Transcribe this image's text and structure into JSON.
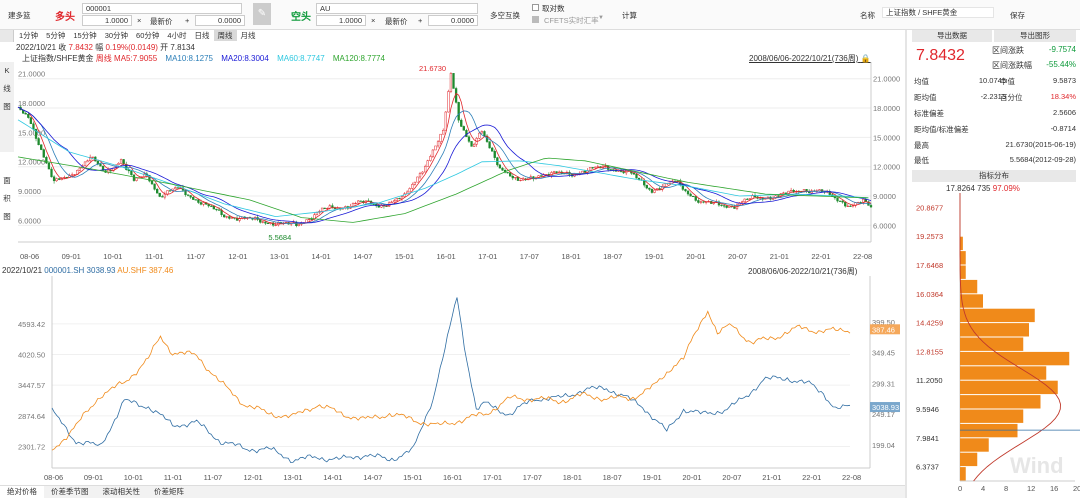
{
  "toolbar": {
    "strategy": "建多篮",
    "long_label": "多头",
    "long_code": "000001",
    "long_qty_label": "1.0000",
    "long_op": "×",
    "long_price_label": "最新价",
    "long_plus": "+",
    "long_offset": "0.0000",
    "short_label": "空头",
    "short_code": "AU",
    "short_qty": "1.0000",
    "short_op": "×",
    "short_price_label": "最新价",
    "short_plus": "+",
    "short_offset": "0.0000",
    "ls_exchange": "多空互换",
    "inverse": "取对数",
    "cfets": "CFETS实时汇率",
    "calc": "计算",
    "name_label": "名称",
    "name_value": "上证指数 / SHFE黄金",
    "save": "保存"
  },
  "periods": [
    "1分钟",
    "5分钟",
    "15分钟",
    "30分钟",
    "60分钟",
    "4小时",
    "日线",
    "周线",
    "月线"
  ],
  "active_period": "周线",
  "side_labels": {
    "k": "K",
    "line": "线",
    "chart": "图",
    "area": "面",
    "product": "积",
    "chart2": "图"
  },
  "info": {
    "date": "2022/10/21",
    "close_label": "收",
    "close": "7.8432",
    "chg_label": "幅",
    "chg": "0.19%(0.0149)",
    "open_label": "开",
    "open": "7.8134"
  },
  "ma": {
    "title": "上证指数/SHFE黄金",
    "period": "周线",
    "ma5": "MA5:7.9055",
    "ma10": "MA10:8.1275",
    "ma20": "MA20:8.3004",
    "ma60": "MA60:8.7747",
    "ma120": "MA120:8.7774",
    "range": "2008/06/06-2022/10/21(736周)",
    "lock": "🔒"
  },
  "ma_colors": {
    "ma5": "#e0272c",
    "ma10": "#2c7fb8",
    "ma20": "#1a1ad6",
    "ma60": "#2ec8e0",
    "ma120": "#2fa52f"
  },
  "k_chart": {
    "y_ticks": [
      "21.0000",
      "18.0000",
      "15.0000",
      "12.0000",
      "9.0000",
      "6.0000"
    ],
    "y_values": [
      21,
      18,
      15,
      12,
      9,
      6
    ],
    "y_min": 4.3,
    "y_max": 22.3,
    "high_label": "21.6730",
    "low_label": "5.5684",
    "x_ticks": [
      "08-06",
      "09-01",
      "10-01",
      "11-01",
      "11-07",
      "12-01",
      "13-01",
      "14-01",
      "14-07",
      "15-01",
      "16-01",
      "17-01",
      "17-07",
      "18-01",
      "18-07",
      "19-01",
      "20-01",
      "20-07",
      "21-01",
      "22-01",
      "22-08"
    ],
    "series": [
      [
        0,
        17.8
      ],
      [
        4,
        17.0
      ],
      [
        8,
        14.5
      ],
      [
        14,
        10.4
      ],
      [
        20,
        11.0
      ],
      [
        28,
        13.0
      ],
      [
        34,
        11.3
      ],
      [
        40,
        12.8
      ],
      [
        45,
        10.5
      ],
      [
        50,
        11.2
      ],
      [
        55,
        9.0
      ],
      [
        62,
        9.8
      ],
      [
        72,
        8.2
      ],
      [
        80,
        7.0
      ],
      [
        95,
        6.4
      ],
      [
        108,
        6.0
      ],
      [
        118,
        7.6
      ],
      [
        125,
        7.8
      ],
      [
        132,
        8.4
      ],
      [
        140,
        8.0
      ],
      [
        150,
        8.9
      ],
      [
        158,
        12.2
      ],
      [
        165,
        15.5
      ],
      [
        168,
        21.6
      ],
      [
        171,
        17.0
      ],
      [
        176,
        14.0
      ],
      [
        180,
        15.5
      ],
      [
        187,
        12.0
      ],
      [
        194,
        10.4
      ],
      [
        202,
        11.2
      ],
      [
        215,
        11.3
      ],
      [
        228,
        12.0
      ],
      [
        237,
        11.4
      ],
      [
        246,
        9.6
      ],
      [
        255,
        10.5
      ],
      [
        265,
        8.3
      ],
      [
        278,
        8.0
      ],
      [
        285,
        8.8
      ],
      [
        295,
        9.0
      ],
      [
        305,
        9.7
      ],
      [
        312,
        9.4
      ],
      [
        318,
        8.7
      ],
      [
        323,
        8.0
      ],
      [
        328,
        8.4
      ],
      [
        331,
        7.8
      ]
    ],
    "ma60": [
      [
        0,
        16.8
      ],
      [
        20,
        13.5
      ],
      [
        40,
        12.0
      ],
      [
        60,
        10.2
      ],
      [
        80,
        8.2
      ],
      [
        100,
        6.9
      ],
      [
        118,
        7.4
      ],
      [
        140,
        8.3
      ],
      [
        158,
        9.8
      ],
      [
        170,
        11.2
      ],
      [
        180,
        12.5
      ],
      [
        195,
        12.6
      ],
      [
        210,
        12.1
      ],
      [
        240,
        10.7
      ],
      [
        260,
        10.0
      ],
      [
        280,
        9.0
      ],
      [
        300,
        9.2
      ],
      [
        320,
        9.0
      ],
      [
        331,
        8.8
      ]
    ],
    "ma120": [
      [
        0,
        13.0
      ],
      [
        30,
        11.7
      ],
      [
        60,
        10.2
      ],
      [
        90,
        8.6
      ],
      [
        110,
        6.8
      ],
      [
        130,
        6.3
      ],
      [
        150,
        7.2
      ],
      [
        170,
        9.2
      ],
      [
        190,
        11.6
      ],
      [
        205,
        12.9
      ],
      [
        220,
        12.6
      ],
      [
        240,
        11.5
      ],
      [
        260,
        10.4
      ],
      [
        290,
        9.2
      ],
      [
        320,
        8.9
      ],
      [
        331,
        8.8
      ]
    ]
  },
  "compare": {
    "date": "2022/10/21",
    "sym1": "000001.SH",
    "val1": "3038.93",
    "sym2": "AU.SHF",
    "val2": "387.46",
    "range": "2008/06/06-2022/10/21(736周)",
    "left_ticks": [
      "4593.42",
      "4020.50",
      "3447.57",
      "2874.64",
      "2301.72"
    ],
    "right_ticks": [
      "399.50",
      "349.45",
      "299.31",
      "249.17",
      "199.04"
    ],
    "tag1": "3038.93",
    "tag2": "387.46",
    "sh": [
      [
        0,
        2960
      ],
      [
        10,
        2400
      ],
      [
        20,
        2300
      ],
      [
        30,
        3150
      ],
      [
        40,
        3050
      ],
      [
        50,
        2700
      ],
      [
        60,
        2750
      ],
      [
        70,
        2400
      ],
      [
        80,
        2260
      ],
      [
        90,
        2250
      ],
      [
        100,
        2050
      ],
      [
        110,
        2100
      ],
      [
        120,
        2060
      ],
      [
        130,
        2150
      ],
      [
        140,
        2050
      ],
      [
        150,
        2250
      ],
      [
        158,
        3200
      ],
      [
        165,
        4500
      ],
      [
        168,
        5100
      ],
      [
        171,
        4200
      ],
      [
        176,
        3000
      ],
      [
        180,
        3100
      ],
      [
        190,
        2900
      ],
      [
        200,
        3200
      ],
      [
        210,
        3200
      ],
      [
        220,
        3350
      ],
      [
        230,
        3400
      ],
      [
        245,
        3050
      ],
      [
        255,
        2580
      ],
      [
        262,
        3000
      ],
      [
        270,
        2900
      ],
      [
        280,
        3000
      ],
      [
        287,
        3200
      ],
      [
        295,
        3550
      ],
      [
        305,
        3580
      ],
      [
        315,
        3450
      ],
      [
        320,
        3300
      ],
      [
        325,
        3000
      ],
      [
        331,
        3038
      ]
    ],
    "au": [
      [
        0,
        190
      ],
      [
        10,
        230
      ],
      [
        20,
        280
      ],
      [
        30,
        300
      ],
      [
        40,
        340
      ],
      [
        45,
        375
      ],
      [
        50,
        350
      ],
      [
        60,
        345
      ],
      [
        70,
        300
      ],
      [
        80,
        265
      ],
      [
        90,
        250
      ],
      [
        100,
        245
      ],
      [
        110,
        265
      ],
      [
        120,
        250
      ],
      [
        130,
        240
      ],
      [
        140,
        250
      ],
      [
        150,
        240
      ],
      [
        160,
        230
      ],
      [
        170,
        240
      ],
      [
        180,
        250
      ],
      [
        190,
        275
      ],
      [
        200,
        275
      ],
      [
        210,
        270
      ],
      [
        220,
        280
      ],
      [
        230,
        275
      ],
      [
        240,
        275
      ],
      [
        250,
        295
      ],
      [
        258,
        330
      ],
      [
        262,
        340
      ],
      [
        268,
        390
      ],
      [
        272,
        420
      ],
      [
        276,
        380
      ],
      [
        282,
        395
      ],
      [
        290,
        365
      ],
      [
        300,
        375
      ],
      [
        310,
        390
      ],
      [
        318,
        385
      ],
      [
        325,
        385
      ],
      [
        331,
        387
      ]
    ]
  },
  "bottom_tabs": [
    "绝对价格",
    "价差季节图",
    "滚动相关性",
    "价差矩阵"
  ],
  "stats": {
    "export_data": "导出数据",
    "export_chart": "导出图形",
    "price": "7.8432",
    "int_chg_label": "区间涨跌",
    "int_chg": "-9.7574",
    "int_pct_label": "区间涨跌幅",
    "int_pct": "-55.44%",
    "mean_label": "均值",
    "mean": "10.0745",
    "median_label": "中值",
    "median": "9.5873",
    "dev_label": "距均值",
    "dev": "-2.2313",
    "pctile_label": "百分位",
    "pctile": "18.34%",
    "std_label": "标准偏差",
    "std": "2.5606",
    "z_label": "距均值/标准偏差",
    "z": "-0.8714",
    "max_label": "最高",
    "max": "21.6730(2015-06-19)",
    "min_label": "最低",
    "min": "5.5684(2012-09-28)",
    "dist_title": "指标分布",
    "dist_top": "17.8264",
    "dist_count": "735",
    "dist_pct": "97.09%"
  },
  "hist": {
    "levels": [
      "20.8677",
      "19.2573",
      "17.6468",
      "16.0364",
      "14.4259",
      "12.8155",
      "11.2050",
      "9.5946",
      "7.9841",
      "6.3737"
    ],
    "counts": [
      0,
      0,
      0,
      0.5,
      1,
      1,
      3,
      4,
      13,
      12,
      11,
      19,
      15,
      17,
      14,
      11,
      10,
      5,
      3,
      1
    ],
    "x_ticks": [
      "0",
      "4",
      "8",
      "12",
      "16",
      "20"
    ],
    "watermark": "Wind"
  }
}
